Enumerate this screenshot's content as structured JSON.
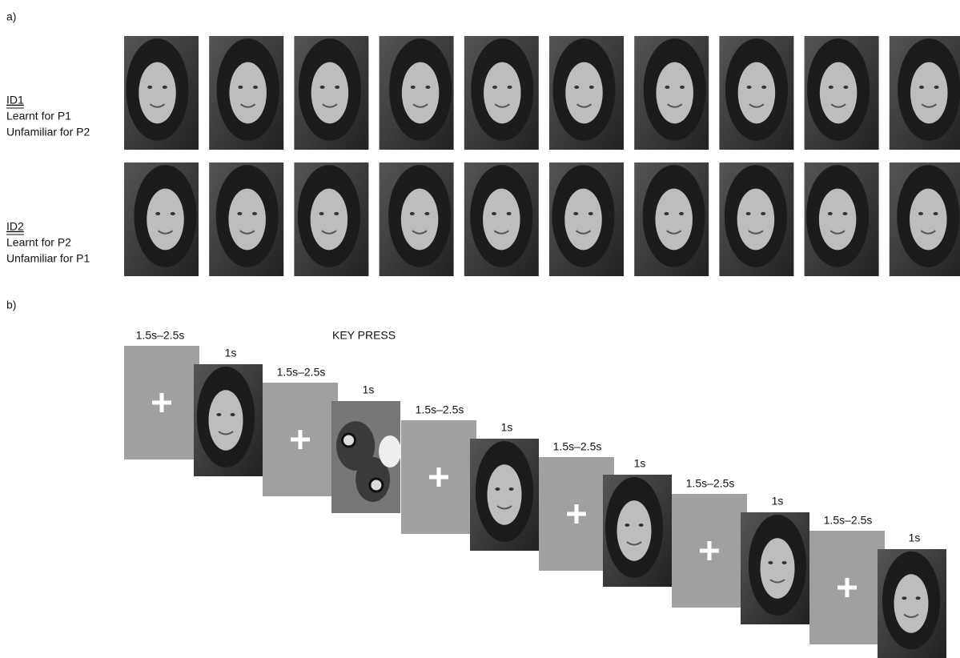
{
  "panel_a": {
    "label": "a)",
    "rows": [
      {
        "id": "ID1",
        "lines": [
          "Learnt for P1",
          "Unfamiliar for P2"
        ]
      },
      {
        "id": "ID2",
        "lines": [
          "Learnt for P2",
          "Unfamiliar for P1"
        ]
      }
    ]
  },
  "panel_b": {
    "label": "b)",
    "key_press": "KEY PRESS",
    "sequence": [
      {
        "fixation": "1.5s–2.5s",
        "stimulus": "1s"
      },
      {
        "fixation": "1.5s–2.5s",
        "stimulus": "1s"
      },
      {
        "fixation": "1.5s–2.5s",
        "stimulus": "1s"
      },
      {
        "fixation": "1.5s–2.5s",
        "stimulus": "1s"
      },
      {
        "fixation": "1.5s–2.5s",
        "stimulus": "1s"
      },
      {
        "fixation": "1.5s–2.5s",
        "stimulus": "1s"
      }
    ]
  }
}
